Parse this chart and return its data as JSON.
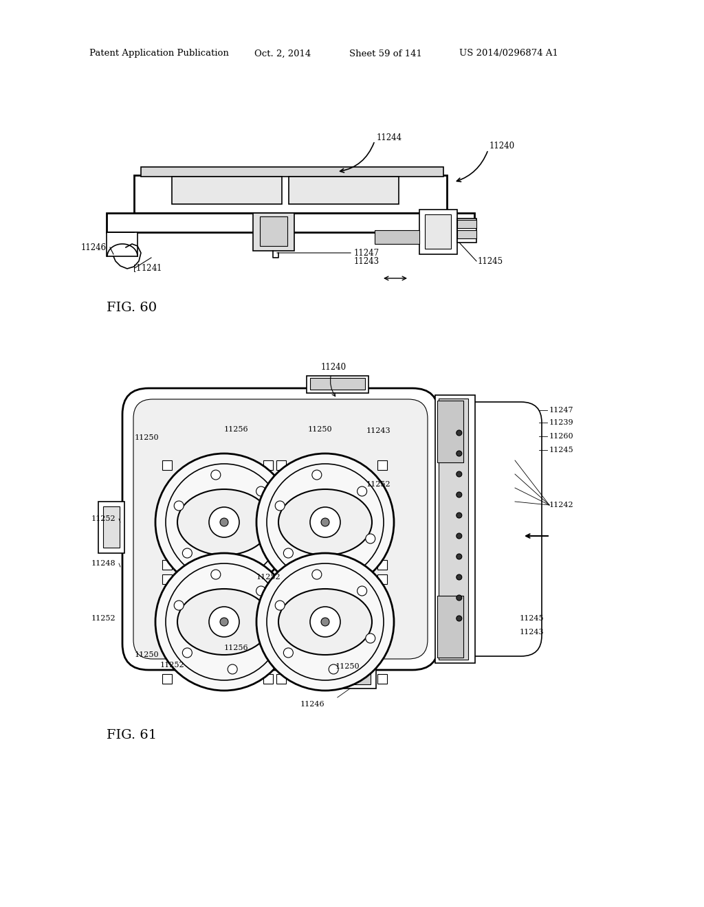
{
  "background_color": "#ffffff",
  "header_text": "Patent Application Publication",
  "header_date": "Oct. 2, 2014",
  "header_sheet": "Sheet 59 of 141",
  "header_patent": "US 2014/0296874 A1",
  "fig60_label": "FIG. 60",
  "fig61_label": "FIG. 61",
  "line_color": "#000000"
}
